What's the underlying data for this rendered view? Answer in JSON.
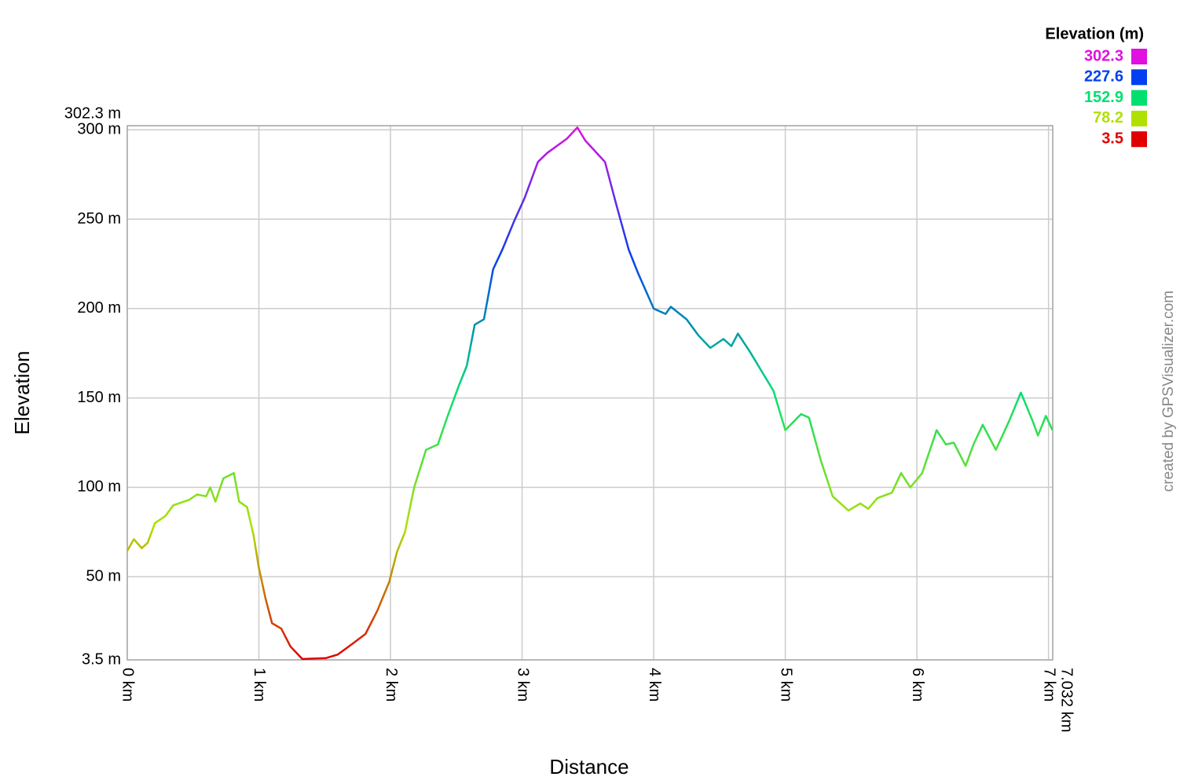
{
  "chart_data": {
    "type": "line",
    "x_label": "Distance",
    "y_label": "Elevation",
    "credit": "created by GPSVisualizer.com",
    "legend_title": "Elevation (m)",
    "color_scale": [
      {
        "value": 302.3,
        "color": "#e010e0"
      },
      {
        "value": 227.6,
        "color": "#0040f0"
      },
      {
        "value": 152.9,
        "color": "#00e070"
      },
      {
        "value": 78.2,
        "color": "#b0e000"
      },
      {
        "value": 3.5,
        "color": "#e00000"
      }
    ],
    "grid": true,
    "xlim": [
      0,
      7.032
    ],
    "ylim": [
      3.5,
      302.3
    ],
    "xticks": [
      {
        "value": 0,
        "label": "0 km"
      },
      {
        "value": 1,
        "label": "1 km"
      },
      {
        "value": 2,
        "label": "2 km"
      },
      {
        "value": 3,
        "label": "3 km"
      },
      {
        "value": 4,
        "label": "4 km"
      },
      {
        "value": 5,
        "label": "5 km"
      },
      {
        "value": 6,
        "label": "6 km"
      },
      {
        "value": 7,
        "label": "7 km"
      },
      {
        "value": 7.032,
        "label": "7.032 km"
      }
    ],
    "yticks": [
      {
        "value": 3.5,
        "label": "3.5 m"
      },
      {
        "value": 50,
        "label": "50 m"
      },
      {
        "value": 100,
        "label": "100 m"
      },
      {
        "value": 150,
        "label": "150 m"
      },
      {
        "value": 200,
        "label": "200 m"
      },
      {
        "value": 250,
        "label": "250 m"
      },
      {
        "value": 300,
        "label": "300 m"
      },
      {
        "value": 302.3,
        "label": "302.3 m"
      }
    ],
    "x": [
      0,
      0.05,
      0.11,
      0.155,
      0.21,
      0.29,
      0.35,
      0.47,
      0.53,
      0.6,
      0.63,
      0.67,
      0.73,
      0.81,
      0.85,
      0.91,
      0.96,
      1.0,
      1.05,
      1.1,
      1.17,
      1.24,
      1.33,
      1.51,
      1.6,
      1.72,
      1.81,
      1.9,
      1.99,
      2.05,
      2.11,
      2.18,
      2.27,
      2.36,
      2.43,
      2.52,
      2.58,
      2.64,
      2.71,
      2.78,
      2.85,
      2.94,
      3.02,
      3.12,
      3.19,
      3.34,
      3.42,
      3.48,
      3.63,
      3.72,
      3.81,
      3.88,
      4.0,
      4.09,
      4.13,
      4.25,
      4.34,
      4.43,
      4.53,
      4.59,
      4.64,
      4.73,
      4.82,
      4.91,
      5.0,
      5.12,
      5.18,
      5.27,
      5.36,
      5.48,
      5.57,
      5.63,
      5.7,
      5.81,
      5.88,
      5.95,
      6.04,
      6.15,
      6.22,
      6.28,
      6.37,
      6.43,
      6.5,
      6.6,
      6.7,
      6.79,
      6.88,
      6.92,
      6.98,
      7.03
    ],
    "values": [
      64.5,
      71,
      66,
      69,
      80,
      84,
      90,
      93,
      96,
      95,
      100,
      92,
      105,
      108,
      92,
      89,
      73,
      55,
      38,
      24,
      21,
      11,
      4,
      4.5,
      6.5,
      13,
      18,
      31,
      47,
      64,
      75,
      100,
      121,
      124,
      139,
      157,
      168,
      191,
      194,
      222,
      233,
      249,
      262,
      282,
      287,
      295,
      301.3,
      294,
      282,
      257,
      233,
      220,
      200,
      197,
      201,
      194,
      185,
      178,
      183,
      179,
      186,
      176,
      165,
      154,
      132,
      141,
      139,
      115,
      95,
      87,
      91,
      88,
      94,
      97,
      108,
      100,
      108,
      132,
      124,
      125,
      112,
      124,
      135,
      121,
      137,
      153,
      137,
      129,
      140,
      132
    ]
  }
}
